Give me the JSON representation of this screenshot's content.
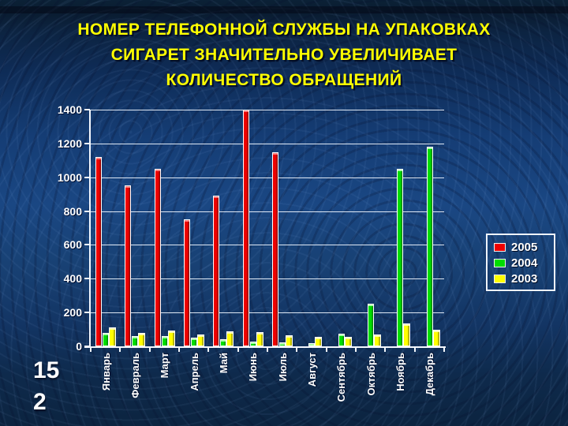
{
  "slide": {
    "title_lines": [
      "НОМЕР ТЕЛЕФОННОЙ СЛУЖБЫ НА УПАКОВКАХ",
      "СИГАРЕТ ЗНАЧИТЕЛЬНО УВЕЛИЧИВАЕТ",
      "КОЛИЧЕСТВО ОБРАЩЕНИЙ"
    ],
    "page_number": {
      "line1": "15",
      "line2": "2"
    }
  },
  "chart_data": {
    "type": "bar",
    "title": "НОМЕР ТЕЛЕФОННОЙ СЛУЖБЫ НА УПАКОВКАХ СИГАРЕТ ЗНАЧИТЕЛЬНО УВЕЛИЧИВАЕТ КОЛИЧЕСТВО ОБРАЩЕНИЙ",
    "xlabel": "",
    "ylabel": "",
    "categories": [
      "Январь",
      "Февраль",
      "Март",
      "Апрель",
      "Май",
      "Июнь",
      "Июль",
      "Август",
      "Сентябрь",
      "Октябрь",
      "Ноябрь",
      "Декабрь"
    ],
    "series": [
      {
        "name": "2005",
        "color": "#ee0000",
        "color_dark": "#930000",
        "color_light": "#ff8080",
        "values": [
          1120,
          950,
          1050,
          750,
          890,
          1400,
          1150,
          null,
          null,
          null,
          null,
          null
        ]
      },
      {
        "name": "2004",
        "color": "#00dd00",
        "color_dark": "#008f00",
        "color_light": "#aaffaa",
        "values": [
          80,
          60,
          60,
          50,
          40,
          30,
          25,
          20,
          75,
          250,
          1050,
          1180
        ]
      },
      {
        "name": "2003",
        "color": "#ffff00",
        "color_dark": "#b8b800",
        "color_light": "#ffffb0",
        "values": [
          110,
          80,
          95,
          70,
          90,
          85,
          65,
          55,
          55,
          70,
          135,
          100
        ]
      }
    ],
    "ylim": [
      0,
      1400
    ],
    "ytick_step": 200,
    "yticks": [
      "0",
      "200",
      "400",
      "600",
      "800",
      "1000",
      "1200",
      "1400"
    ],
    "grid": true,
    "legend_position": "right",
    "legend_entries": [
      "2005",
      "2004",
      "2003"
    ]
  },
  "colors": {
    "background": "#123562",
    "title_text": "#ffff00",
    "axis_text": "#ffffff",
    "gridline": "#f0f6ff",
    "series_2005": "#ee0000",
    "series_2004": "#00dd00",
    "series_2003": "#ffff00"
  }
}
